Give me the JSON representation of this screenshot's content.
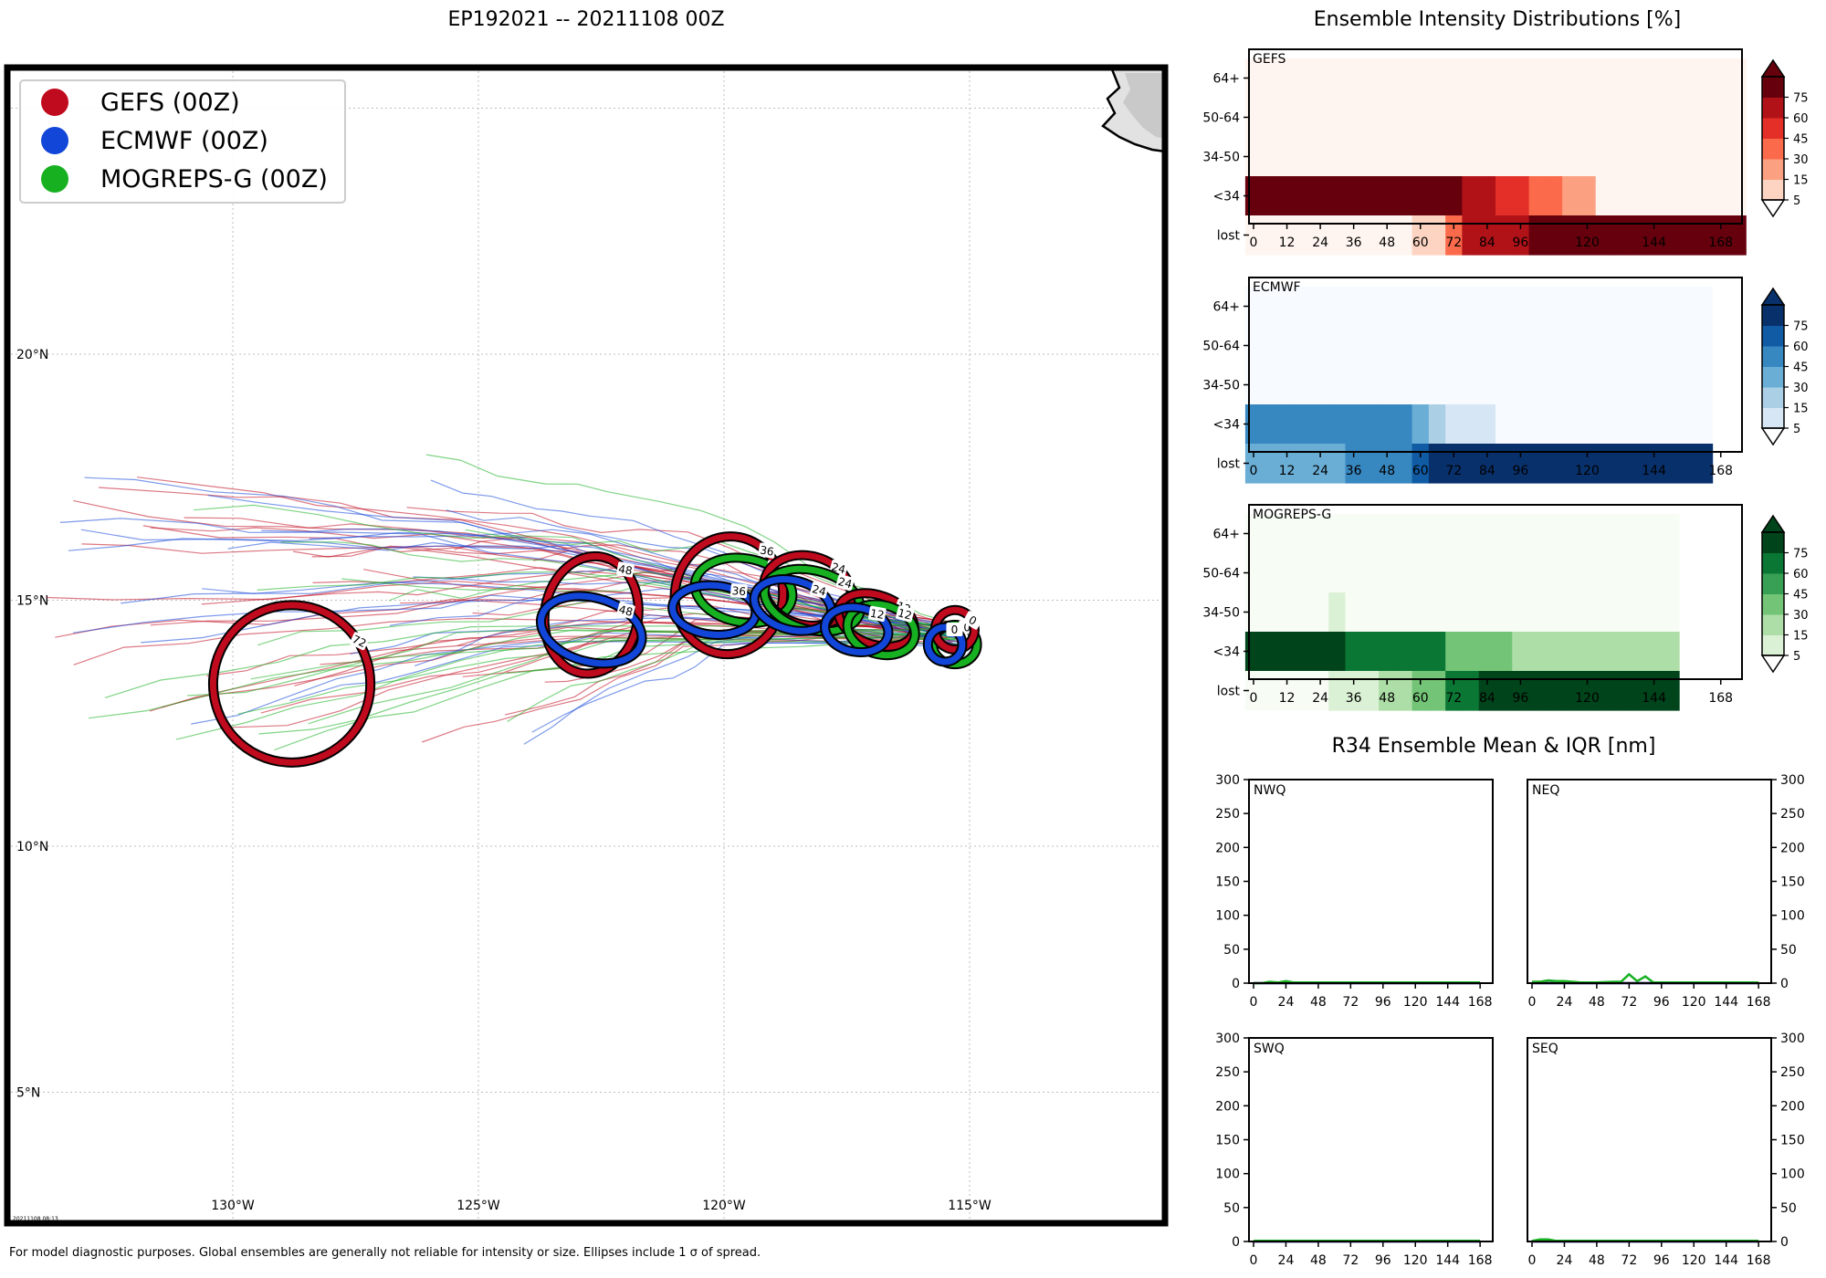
{
  "page": {
    "title": "EP192021 -- 20211108 00Z",
    "footer": "For model diagnostic purposes. Global ensembles are generally not reliable for intensity or size. Ellipses include 1 σ of spread.",
    "stamp": "20211108 08:13"
  },
  "colors": {
    "gefs": "#c00a1e",
    "ecmwf": "#1246d8",
    "mogreps": "#17b021"
  },
  "chart_data": [
    {
      "id": "track_map",
      "type": "scatter",
      "legend": [
        {
          "name": "GEFS (00Z)",
          "color": "#c00a1e"
        },
        {
          "name": "ECMWF (00Z)",
          "color": "#1246d8"
        },
        {
          "name": "MOGREPS-G (00Z)",
          "color": "#17b021"
        }
      ],
      "legend_position": "top-left",
      "lon_ticks": [
        "130°W",
        "125°W",
        "120°W",
        "115°W"
      ],
      "lat_ticks": [
        "20°N",
        "15°N",
        "10°N",
        "5°N"
      ],
      "grid": true,
      "ellipses": [
        {
          "model": "GEFS",
          "hour": "0",
          "lon": -115.3,
          "lat": 14.4,
          "rx": 0.4,
          "ry": 0.4,
          "rot": 30
        },
        {
          "model": "GEFS",
          "hour": "12",
          "lon": -116.9,
          "lat": 14.6,
          "rx": 0.8,
          "ry": 0.5,
          "rot": 20
        },
        {
          "model": "GEFS",
          "hour": "24",
          "lon": -118.3,
          "lat": 15.2,
          "rx": 0.9,
          "ry": 0.7,
          "rot": 15
        },
        {
          "model": "GEFS",
          "hour": "36",
          "lon": -119.9,
          "lat": 15.1,
          "rx": 1.1,
          "ry": 1.2,
          "rot": 10
        },
        {
          "model": "GEFS",
          "hour": "48",
          "lon": -122.7,
          "lat": 14.7,
          "rx": 0.95,
          "ry": 1.2,
          "rot": 10
        },
        {
          "model": "GEFS",
          "hour": "72",
          "lon": -128.8,
          "lat": 13.3,
          "rx": 1.6,
          "ry": 1.6,
          "rot": 25
        },
        {
          "model": "ECMWF",
          "hour": "0",
          "lon": -115.5,
          "lat": 14.1,
          "rx": 0.35,
          "ry": 0.35,
          "rot": 0
        },
        {
          "model": "ECMWF",
          "hour": "12",
          "lon": -117.3,
          "lat": 14.4,
          "rx": 0.65,
          "ry": 0.45,
          "rot": 10
        },
        {
          "model": "ECMWF",
          "hour": "24",
          "lon": -118.6,
          "lat": 14.9,
          "rx": 0.8,
          "ry": 0.5,
          "rot": 15
        },
        {
          "model": "ECMWF",
          "hour": "36",
          "lon": -120.2,
          "lat": 14.8,
          "rx": 0.85,
          "ry": 0.5,
          "rot": 5
        },
        {
          "model": "ECMWF",
          "hour": "48",
          "lon": -122.7,
          "lat": 14.4,
          "rx": 1.05,
          "ry": 0.65,
          "rot": 15
        },
        {
          "model": "MOGREPS",
          "hour": "0",
          "lon": -115.3,
          "lat": 14.1,
          "rx": 0.45,
          "ry": 0.4,
          "rot": 0
        },
        {
          "model": "MOGREPS",
          "hour": "12",
          "lon": -116.8,
          "lat": 14.4,
          "rx": 0.7,
          "ry": 0.5,
          "rot": 15
        },
        {
          "model": "MOGREPS",
          "hour": "24",
          "lon": -118.2,
          "lat": 15.0,
          "rx": 1.0,
          "ry": 0.6,
          "rot": 15
        },
        {
          "model": "MOGREPS",
          "hour": "36",
          "lon": -119.6,
          "lat": 15.2,
          "rx": 1.0,
          "ry": 0.65,
          "rot": 10
        }
      ]
    },
    {
      "id": "intensity_gefs",
      "type": "heatmap",
      "label": "GEFS",
      "rows": [
        "64+",
        "50-64",
        "34-50",
        "<34",
        "lost"
      ],
      "x_ticks": [
        0,
        12,
        24,
        36,
        48,
        60,
        72,
        84,
        96,
        120,
        144,
        168
      ],
      "x_end": 174,
      "values": [
        [
          2,
          2,
          2,
          2,
          2,
          2,
          2,
          2,
          2,
          2,
          2,
          2,
          2,
          2,
          2,
          2,
          2,
          2,
          2,
          2,
          2,
          2,
          2,
          2,
          2,
          2,
          2,
          2,
          2,
          2
        ],
        [
          2,
          2,
          2,
          2,
          2,
          2,
          2,
          2,
          2,
          2,
          2,
          2,
          2,
          2,
          2,
          2,
          2,
          2,
          2,
          2,
          2,
          2,
          2,
          2,
          2,
          2,
          2,
          2,
          2,
          2
        ],
        [
          2,
          2,
          2,
          2,
          2,
          2,
          2,
          2,
          2,
          2,
          2,
          2,
          2,
          2,
          2,
          2,
          2,
          2,
          2,
          2,
          2,
          2,
          2,
          2,
          2,
          2,
          2,
          2,
          2,
          2
        ],
        [
          98,
          98,
          98,
          98,
          98,
          98,
          98,
          98,
          98,
          98,
          98,
          98,
          90,
          65,
          65,
          50,
          50,
          40,
          40,
          15,
          15,
          2,
          2,
          2,
          2,
          2,
          2,
          2,
          2,
          2
        ],
        [
          2,
          2,
          2,
          2,
          2,
          2,
          2,
          2,
          2,
          2,
          5,
          10,
          40,
          65,
          65,
          70,
          70,
          80,
          88,
          88,
          88,
          88,
          95,
          95,
          95,
          95,
          95,
          95,
          95,
          98
        ]
      ]
    },
    {
      "id": "intensity_ecmwf",
      "type": "heatmap",
      "label": "ECMWF",
      "rows": [
        "64+",
        "50-64",
        "34-50",
        "<34",
        "lost"
      ],
      "x_ticks": [
        0,
        12,
        24,
        36,
        48,
        60,
        72,
        84,
        96,
        120,
        144,
        168
      ],
      "x_end": 174,
      "values": [
        [
          2,
          2,
          2,
          2,
          2,
          2,
          2,
          2,
          2,
          2,
          2,
          2,
          2,
          2,
          2,
          2,
          2,
          2,
          2,
          2,
          2,
          2,
          2,
          2,
          2,
          2,
          2,
          2,
          -1,
          -1
        ],
        [
          2,
          2,
          2,
          2,
          2,
          2,
          2,
          2,
          2,
          2,
          2,
          2,
          2,
          2,
          2,
          2,
          2,
          2,
          2,
          2,
          2,
          2,
          2,
          2,
          2,
          2,
          2,
          2,
          -1,
          -1
        ],
        [
          2,
          2,
          2,
          2,
          2,
          2,
          2,
          2,
          2,
          2,
          2,
          2,
          2,
          2,
          2,
          2,
          2,
          2,
          2,
          2,
          2,
          2,
          2,
          2,
          2,
          2,
          2,
          2,
          -1,
          -1
        ],
        [
          50,
          50,
          50,
          50,
          50,
          50,
          50,
          50,
          50,
          50,
          40,
          25,
          10,
          10,
          10,
          2,
          2,
          2,
          2,
          2,
          2,
          2,
          2,
          2,
          2,
          2,
          2,
          2,
          -1,
          -1
        ],
        [
          40,
          40,
          40,
          40,
          40,
          40,
          50,
          50,
          50,
          50,
          65,
          90,
          90,
          90,
          90,
          90,
          90,
          90,
          90,
          90,
          90,
          90,
          90,
          90,
          90,
          90,
          90,
          90,
          -1,
          -1
        ]
      ]
    },
    {
      "id": "intensity_mogreps",
      "type": "heatmap",
      "label": "MOGREPS-G",
      "rows": [
        "64+",
        "50-64",
        "34-50",
        "<34",
        "lost"
      ],
      "x_ticks": [
        0,
        12,
        24,
        36,
        48,
        60,
        72,
        84,
        96,
        120,
        144,
        168
      ],
      "x_end": 174,
      "values": [
        [
          2,
          2,
          2,
          2,
          2,
          2,
          2,
          2,
          2,
          2,
          2,
          2,
          2,
          2,
          2,
          2,
          2,
          2,
          2,
          2,
          2,
          2,
          2,
          2,
          2,
          2,
          -1,
          -1,
          -1,
          -1
        ],
        [
          2,
          2,
          2,
          2,
          2,
          2,
          2,
          2,
          2,
          2,
          2,
          2,
          2,
          2,
          2,
          2,
          2,
          2,
          2,
          2,
          2,
          2,
          2,
          2,
          2,
          2,
          -1,
          -1,
          -1,
          -1
        ],
        [
          2,
          2,
          2,
          2,
          2,
          10,
          2,
          2,
          2,
          2,
          2,
          2,
          2,
          2,
          2,
          2,
          2,
          2,
          2,
          2,
          2,
          2,
          2,
          2,
          2,
          2,
          -1,
          -1,
          -1,
          -1
        ],
        [
          90,
          90,
          90,
          90,
          90,
          90,
          70,
          70,
          70,
          70,
          60,
          60,
          40,
          40,
          40,
          40,
          15,
          15,
          15,
          15,
          15,
          15,
          15,
          15,
          15,
          15,
          -1,
          -1,
          -1,
          -1
        ],
        [
          2,
          2,
          2,
          2,
          2,
          10,
          10,
          10,
          20,
          20,
          40,
          40,
          70,
          70,
          80,
          80,
          80,
          80,
          80,
          80,
          80,
          80,
          80,
          80,
          80,
          80,
          -1,
          -1,
          -1,
          -1
        ]
      ]
    },
    {
      "id": "r34_panels",
      "type": "line",
      "title": "R34 Ensemble Mean & IQR [nm]",
      "x_ticks": [
        0,
        24,
        48,
        72,
        96,
        120,
        144,
        168
      ],
      "y_ticks": [
        0,
        50,
        100,
        150,
        200,
        250,
        300
      ],
      "ylim": [
        0,
        300
      ],
      "xlim": [
        0,
        174
      ],
      "panels": [
        {
          "label": "NWQ",
          "series": [
            {
              "color": "#17b021",
              "x": [
                0,
                6,
                12,
                18,
                24,
                30,
                36,
                48,
                60,
                72,
                84,
                96,
                108,
                120,
                132,
                144,
                156,
                168
              ],
              "y": [
                0,
                0,
                2,
                1,
                3,
                1,
                1,
                1,
                1,
                1,
                1,
                1,
                1,
                1,
                1,
                1,
                1,
                1
              ]
            },
            {
              "color": "#1246d8",
              "x": [
                0,
                168
              ],
              "y": [
                0,
                0
              ]
            },
            {
              "color": "#c00a1e",
              "x": [
                0,
                168
              ],
              "y": [
                0,
                0
              ]
            }
          ]
        },
        {
          "label": "NEQ",
          "series": [
            {
              "color": "#17b021",
              "x": [
                0,
                6,
                12,
                18,
                24,
                36,
                48,
                60,
                66,
                72,
                78,
                84,
                90,
                96,
                108,
                120,
                132,
                144,
                156,
                168
              ],
              "y": [
                2,
                2,
                4,
                3,
                3,
                1,
                1,
                2,
                2,
                13,
                3,
                10,
                1,
                1,
                1,
                1,
                1,
                1,
                1,
                1
              ]
            },
            {
              "color": "#1246d8",
              "x": [
                0,
                168
              ],
              "y": [
                0,
                0
              ]
            },
            {
              "color": "#c00a1e",
              "x": [
                0,
                168
              ],
              "y": [
                0,
                0
              ]
            }
          ]
        },
        {
          "label": "SWQ",
          "series": [
            {
              "color": "#17b021",
              "x": [
                0,
                12,
                24,
                48,
                72,
                96,
                120,
                144,
                168
              ],
              "y": [
                1,
                1,
                1,
                1,
                1,
                1,
                1,
                1,
                1
              ]
            },
            {
              "color": "#1246d8",
              "x": [
                0,
                168
              ],
              "y": [
                0,
                0
              ]
            },
            {
              "color": "#c00a1e",
              "x": [
                0,
                168
              ],
              "y": [
                0,
                0
              ]
            }
          ]
        },
        {
          "label": "SEQ",
          "series": [
            {
              "color": "#17b021",
              "x": [
                0,
                6,
                12,
                18,
                24,
                48,
                72,
                96,
                120,
                144,
                168
              ],
              "y": [
                1,
                3,
                3,
                1,
                1,
                1,
                1,
                1,
                1,
                1,
                1
              ]
            },
            {
              "color": "#1246d8",
              "x": [
                0,
                168
              ],
              "y": [
                0,
                0
              ]
            },
            {
              "color": "#c00a1e",
              "x": [
                0,
                168
              ],
              "y": [
                0,
                0
              ]
            }
          ]
        }
      ]
    }
  ],
  "intensity_title": "Ensemble Intensity Distributions [%]",
  "colorbar_ticks": [
    "5",
    "15",
    "30",
    "45",
    "60",
    "75"
  ]
}
